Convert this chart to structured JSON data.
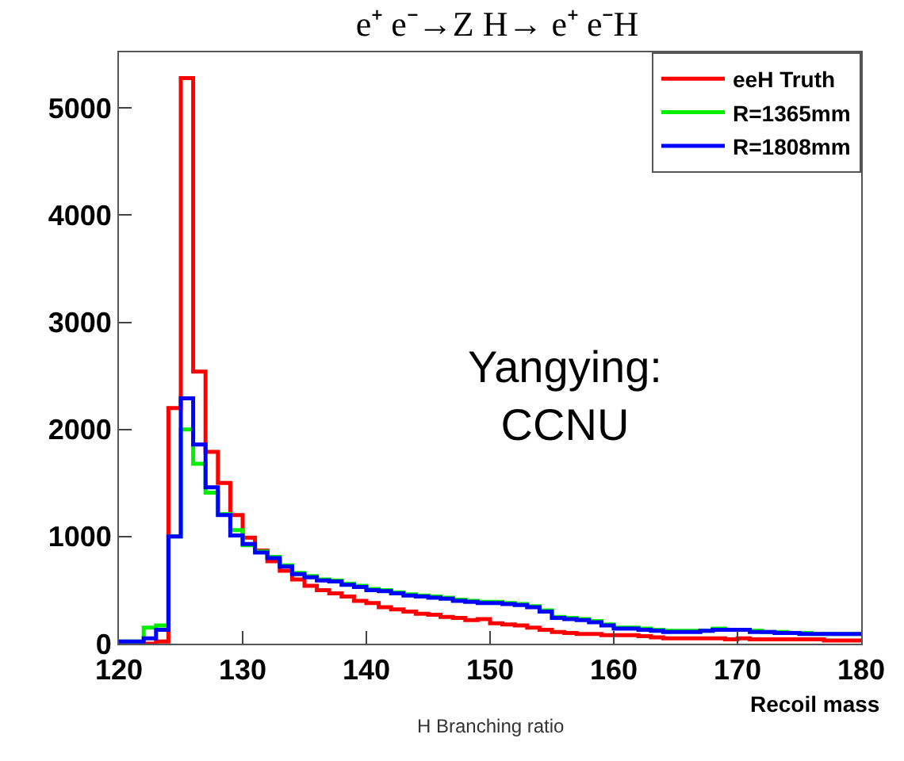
{
  "chart_data": {
    "type": "histogram",
    "title": "e⁺ e⁻→Z H→ e⁺ e⁻H",
    "xlabel": "Recoil mass",
    "bins": [
      120,
      121,
      122,
      123,
      124,
      125,
      126,
      127,
      128,
      129,
      130,
      131,
      132,
      133,
      134,
      135,
      136,
      137,
      138,
      139,
      140,
      141,
      142,
      143,
      144,
      145,
      146,
      147,
      148,
      149,
      150,
      151,
      152,
      153,
      154,
      155,
      156,
      157,
      158,
      159,
      160,
      161,
      162,
      163,
      164,
      165,
      166,
      167,
      168,
      169,
      170,
      171,
      172,
      173,
      174,
      175,
      176,
      177,
      178,
      179,
      180
    ],
    "series": [
      {
        "name": "eeH Truth",
        "color": "#ff0000",
        "values": [
          0,
          0,
          0,
          20,
          2200,
          5280,
          2540,
          1790,
          1500,
          1200,
          990,
          870,
          770,
          680,
          600,
          540,
          500,
          470,
          440,
          400,
          380,
          340,
          320,
          300,
          280,
          270,
          250,
          240,
          220,
          230,
          190,
          180,
          170,
          150,
          130,
          110,
          100,
          90,
          90,
          80,
          80,
          80,
          70,
          60,
          50,
          50,
          50,
          50,
          50,
          40,
          50,
          40,
          40,
          40,
          40,
          40,
          40,
          30,
          30,
          30
        ]
      },
      {
        "name": "R=1365mm",
        "color": "#00ee00",
        "values": [
          20,
          20,
          150,
          170,
          1000,
          2000,
          1680,
          1410,
          1210,
          1060,
          920,
          860,
          810,
          730,
          660,
          630,
          600,
          590,
          560,
          540,
          510,
          500,
          480,
          460,
          450,
          440,
          430,
          410,
          400,
          390,
          390,
          380,
          370,
          350,
          310,
          250,
          240,
          230,
          210,
          180,
          150,
          150,
          140,
          130,
          120,
          120,
          120,
          120,
          140,
          130,
          130,
          120,
          110,
          110,
          100,
          100,
          90,
          90,
          90,
          90
        ]
      },
      {
        "name": "R=1808mm",
        "color": "#0000ff",
        "values": [
          20,
          20,
          50,
          130,
          1000,
          2290,
          1860,
          1460,
          1200,
          1010,
          930,
          850,
          800,
          720,
          650,
          620,
          590,
          580,
          550,
          530,
          500,
          490,
          470,
          450,
          440,
          430,
          420,
          400,
          390,
          380,
          380,
          370,
          360,
          340,
          300,
          240,
          230,
          220,
          200,
          170,
          140,
          140,
          130,
          120,
          110,
          110,
          110,
          120,
          130,
          130,
          130,
          110,
          110,
          100,
          100,
          90,
          90,
          90,
          90,
          90
        ]
      }
    ],
    "xlim": [
      120,
      180
    ],
    "ylim": [
      0,
      5520
    ],
    "xticks": [
      120,
      130,
      140,
      150,
      160,
      170,
      180
    ],
    "yticks": [
      0,
      1000,
      2000,
      3000,
      4000,
      5000
    ],
    "legend": "top right",
    "line_style": "solid",
    "marker": "none",
    "annotations": [
      "Yangying:\nCCNU",
      "H Branching ratio"
    ]
  }
}
